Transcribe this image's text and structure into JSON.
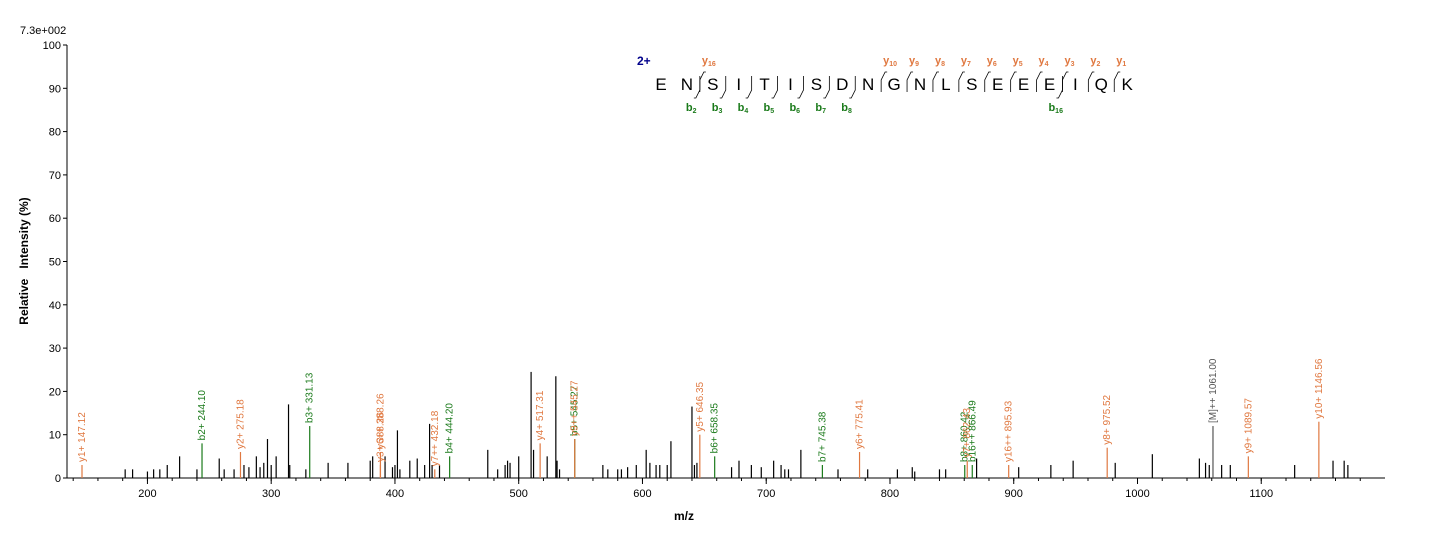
{
  "scale_label": "7.3e+002",
  "colors": {
    "unassigned": "#000000",
    "y_ion": "#e07840",
    "b_ion": "#1a7a1a",
    "precursor": "#555555",
    "charge": "#00008b"
  },
  "chart_data": {
    "type": "bar",
    "xlabel": "m/z",
    "ylabel": "Relative   Intensity (%)",
    "xlim": [
      135,
      1200
    ],
    "ylim": [
      0,
      100
    ],
    "xticks": [
      200,
      300,
      400,
      500,
      600,
      700,
      800,
      900,
      1000,
      1100
    ],
    "yticks": [
      0,
      10,
      20,
      30,
      40,
      50,
      60,
      70,
      80,
      90,
      100
    ],
    "grid": false,
    "annotated_peaks": [
      {
        "mz": 147.12,
        "intensity": 3,
        "label": "y1+ 147.12",
        "ion": "y"
      },
      {
        "mz": 244.1,
        "intensity": 8,
        "label": "b2+ 244.10",
        "ion": "b"
      },
      {
        "mz": 275.18,
        "intensity": 6,
        "label": "y2+ 275.18",
        "ion": "y"
      },
      {
        "mz": 331.13,
        "intensity": 12,
        "label": "b3+ 331.13",
        "ion": "b"
      },
      {
        "mz": 388.26,
        "intensity": 3,
        "label": "y3+ 388.26",
        "ion": "y"
      },
      {
        "mz": 388.26,
        "intensity": 6,
        "label": "y6++ 388.26",
        "ion": "y"
      },
      {
        "mz": 432.18,
        "intensity": 2,
        "label": "y7++ 432.18",
        "ion": "y"
      },
      {
        "mz": 444.2,
        "intensity": 5,
        "label": "b4+ 444.20",
        "ion": "b"
      },
      {
        "mz": 517.31,
        "intensity": 8,
        "label": "y4+ 517.31",
        "ion": "y"
      },
      {
        "mz": 545.27,
        "intensity": 9,
        "label": "b5+ 545.27",
        "ion": "b"
      },
      {
        "mz": 545.27,
        "intensity": 9,
        "label": "y9++ 545.27",
        "ion": "y"
      },
      {
        "mz": 646.35,
        "intensity": 10,
        "label": "y5+ 646.35",
        "ion": "y"
      },
      {
        "mz": 658.35,
        "intensity": 5,
        "label": "b6+ 658.35",
        "ion": "b"
      },
      {
        "mz": 745.38,
        "intensity": 3,
        "label": "b7+ 745.38",
        "ion": "b"
      },
      {
        "mz": 775.41,
        "intensity": 6,
        "label": "y6+ 775.41",
        "ion": "y"
      },
      {
        "mz": 860.42,
        "intensity": 3,
        "label": "b8+ 860.42",
        "ion": "b"
      },
      {
        "mz": 862.43,
        "intensity": 4,
        "label": "y7+ 862.43",
        "ion": "y"
      },
      {
        "mz": 866.49,
        "intensity": 3,
        "label": "b16++ 866.49",
        "ion": "b"
      },
      {
        "mz": 895.93,
        "intensity": 3,
        "label": "y16++ 895.93",
        "ion": "y"
      },
      {
        "mz": 975.52,
        "intensity": 7,
        "label": "y8+ 975.52",
        "ion": "y"
      },
      {
        "mz": 1061.0,
        "intensity": 12,
        "label": "[M]++ 1061.00",
        "ion": "precursor"
      },
      {
        "mz": 1089.57,
        "intensity": 5,
        "label": "y9+ 1089.57",
        "ion": "y"
      },
      {
        "mz": 1146.56,
        "intensity": 13,
        "label": "y10+ 1146.56",
        "ion": "y"
      }
    ],
    "unassigned_peaks": [
      [
        182,
        2
      ],
      [
        188,
        2
      ],
      [
        200,
        1.5
      ],
      [
        205,
        2
      ],
      [
        210,
        2
      ],
      [
        216,
        3
      ],
      [
        226,
        5
      ],
      [
        240,
        2
      ],
      [
        258,
        4.5
      ],
      [
        262,
        2
      ],
      [
        270,
        2
      ],
      [
        278,
        3
      ],
      [
        282,
        2.5
      ],
      [
        288,
        5
      ],
      [
        291,
        2.5
      ],
      [
        294,
        3.5
      ],
      [
        297,
        9
      ],
      [
        300,
        3
      ],
      [
        304,
        5
      ],
      [
        314,
        17
      ],
      [
        315,
        3
      ],
      [
        328,
        2
      ],
      [
        346,
        3.5
      ],
      [
        362,
        3.5
      ],
      [
        380,
        4
      ],
      [
        382,
        5
      ],
      [
        392,
        5
      ],
      [
        398,
        2.5
      ],
      [
        400,
        3
      ],
      [
        402,
        11
      ],
      [
        404,
        2
      ],
      [
        412,
        4
      ],
      [
        418,
        4.5
      ],
      [
        424,
        3
      ],
      [
        428,
        12.5
      ],
      [
        430,
        3
      ],
      [
        436,
        3
      ],
      [
        475,
        6.5
      ],
      [
        483,
        2
      ],
      [
        489,
        3
      ],
      [
        491,
        4
      ],
      [
        493,
        3.5
      ],
      [
        500,
        5
      ],
      [
        510,
        24.5
      ],
      [
        512,
        6.5
      ],
      [
        523,
        5
      ],
      [
        530,
        23.5
      ],
      [
        531,
        4
      ],
      [
        533,
        2
      ],
      [
        568,
        3
      ],
      [
        572,
        2
      ],
      [
        580,
        2
      ],
      [
        583,
        2
      ],
      [
        588,
        2.5
      ],
      [
        595,
        3
      ],
      [
        603,
        6.5
      ],
      [
        606,
        3.5
      ],
      [
        611,
        3
      ],
      [
        614,
        3
      ],
      [
        620,
        3
      ],
      [
        623,
        8.5
      ],
      [
        640,
        16.5
      ],
      [
        642,
        3
      ],
      [
        644,
        3.5
      ],
      [
        672,
        2.5
      ],
      [
        678,
        4
      ],
      [
        688,
        3
      ],
      [
        696,
        2.5
      ],
      [
        706,
        4
      ],
      [
        712,
        3
      ],
      [
        715,
        2
      ],
      [
        718,
        2
      ],
      [
        728,
        6.5
      ],
      [
        758,
        2
      ],
      [
        782,
        2
      ],
      [
        806,
        2
      ],
      [
        818,
        2.5
      ],
      [
        820,
        1.5
      ],
      [
        840,
        2
      ],
      [
        845,
        2
      ],
      [
        870,
        4.5
      ],
      [
        904,
        2.5
      ],
      [
        930,
        3
      ],
      [
        948,
        4
      ],
      [
        982,
        3.5
      ],
      [
        1012,
        5.5
      ],
      [
        1050,
        4.5
      ],
      [
        1055,
        3.5
      ],
      [
        1058,
        3
      ],
      [
        1068,
        3
      ],
      [
        1075,
        3
      ],
      [
        1127,
        3
      ],
      [
        1158,
        4
      ],
      [
        1167,
        4
      ],
      [
        1170,
        3
      ]
    ]
  },
  "sequence": {
    "charge": "2+",
    "residues": [
      "E",
      "N",
      "S",
      "I",
      "T",
      "I",
      "S",
      "D",
      "N",
      "G",
      "N",
      "L",
      "S",
      "E",
      "E",
      "E",
      "I",
      "Q",
      "K"
    ],
    "y_ions": [
      {
        "after": 2,
        "main": "y",
        "sub": "16"
      },
      {
        "after": 9,
        "main": "y",
        "sub": "10"
      },
      {
        "after": 10,
        "main": "y",
        "sub": "9"
      },
      {
        "after": 11,
        "main": "y",
        "sub": "8"
      },
      {
        "after": 12,
        "main": "y",
        "sub": "7"
      },
      {
        "after": 13,
        "main": "y",
        "sub": "6"
      },
      {
        "after": 14,
        "main": "y",
        "sub": "5"
      },
      {
        "after": 15,
        "main": "y",
        "sub": "4"
      },
      {
        "after": 16,
        "main": "y",
        "sub": "3"
      },
      {
        "after": 17,
        "main": "y",
        "sub": "2"
      },
      {
        "after": 18,
        "main": "y",
        "sub": "1"
      }
    ],
    "b_ions": [
      {
        "after": 2,
        "main": "b",
        "sub": "2"
      },
      {
        "after": 3,
        "main": "b",
        "sub": "3"
      },
      {
        "after": 4,
        "main": "b",
        "sub": "4"
      },
      {
        "after": 5,
        "main": "b",
        "sub": "5"
      },
      {
        "after": 6,
        "main": "b",
        "sub": "6"
      },
      {
        "after": 7,
        "main": "b",
        "sub": "7"
      },
      {
        "after": 8,
        "main": "b",
        "sub": "8"
      },
      {
        "after": 16,
        "main": "b",
        "sub": "16"
      }
    ]
  }
}
